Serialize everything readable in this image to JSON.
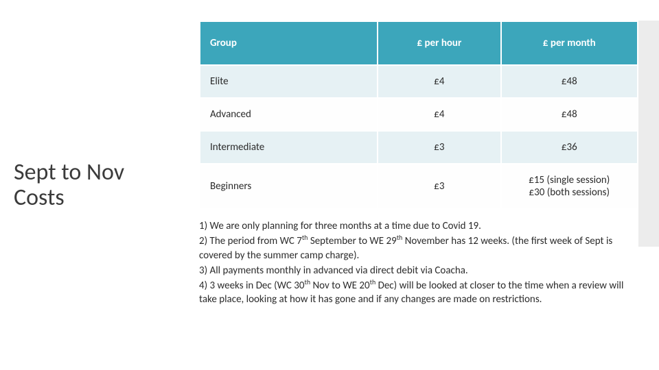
{
  "title_line1": "Sept to Nov",
  "title_line2": "Costs",
  "table": {
    "headers": {
      "group": "Group",
      "per_hour": "£ per hour",
      "per_month": "£ per month"
    },
    "rows": [
      {
        "group": "Elite",
        "hour": "£4",
        "month": "£48",
        "band": "a"
      },
      {
        "group": "Advanced",
        "hour": "£4",
        "month": "£48",
        "band": "b"
      },
      {
        "group": "Intermediate",
        "hour": "£3",
        "month": "£36",
        "band": "a"
      },
      {
        "group": "Beginners",
        "hour": "£3",
        "month": "£15 (single session)\n£30 (both sessions)",
        "band": "b"
      }
    ]
  },
  "notes": [
    "1) We are only planning for three months at a time due to Covid 19.",
    "2) The period from WC 7<sup>th</sup> September to WE 29<sup>th</sup> November has 12 weeks. (the first week of Sept is covered by the summer camp charge).",
    "3) All payments monthly in advanced via direct debit via Coacha.",
    "4) 3 weeks in Dec (WC 30<sup>th</sup> Nov to WE 20<sup>th</sup> Dec) will be looked at closer to the time when a review will take place, looking at how it has gone and if any changes are made on restrictions."
  ],
  "colors": {
    "header_bg": "#3ca6bb",
    "header_fg": "#ffffff",
    "band_a": "#e6f1f4",
    "band_b": "#fefefe",
    "text": "#2b2b2b",
    "rail": "#ececec"
  }
}
